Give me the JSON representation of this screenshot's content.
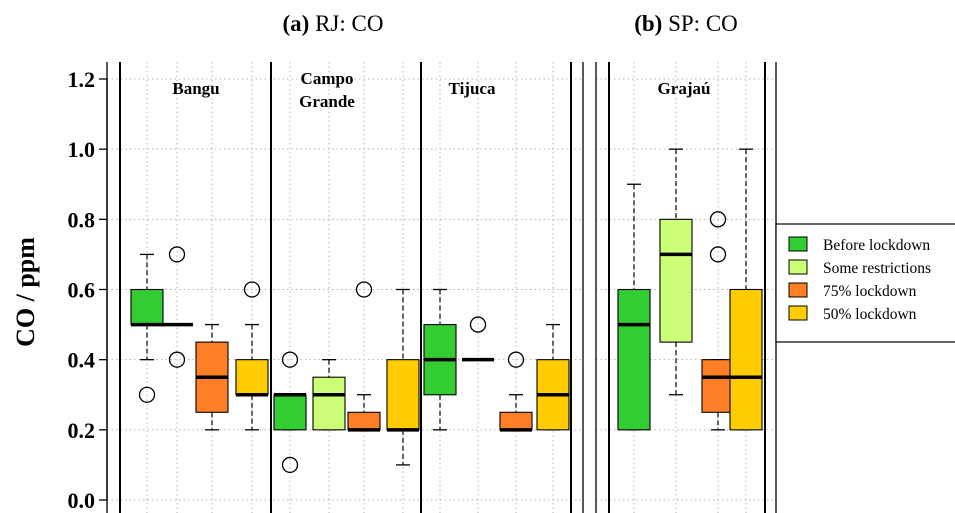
{
  "chart_data": {
    "type": "boxplot",
    "ylabel": "CO / ppm",
    "ylim": [
      0,
      1.2
    ],
    "yticks": [
      "0.0",
      "0.2",
      "0.4",
      "0.6",
      "0.8",
      "1.0",
      "1.2"
    ],
    "grid": true,
    "legend_position": "right",
    "categories": [
      "Before lockdown",
      "Some restrictions",
      "75% lockdown",
      "50% lockdown"
    ],
    "colors": {
      "Before lockdown": "#33cc33",
      "Some restrictions": "#ccff77",
      "75% lockdown": "#ff7f27",
      "50% lockdown": "#ffcc00"
    },
    "panels": [
      {
        "title_bold": "(a)",
        "title_rest": " RJ: CO",
        "stations": [
          {
            "name_lines": [
              "Bangu"
            ],
            "boxes": [
              {
                "category": "Before lockdown",
                "whisker_low": 0.4,
                "q1": 0.5,
                "median": 0.5,
                "q3": 0.6,
                "whisker_high": 0.7,
                "outliers": [
                  0.3
                ]
              },
              {
                "category": "Some restrictions",
                "whisker_low": 0.5,
                "q1": 0.5,
                "median": 0.5,
                "q3": 0.5,
                "whisker_high": 0.5,
                "outliers": [
                  0.4,
                  0.7
                ]
              },
              {
                "category": "75% lockdown",
                "whisker_low": 0.2,
                "q1": 0.25,
                "median": 0.35,
                "q3": 0.45,
                "whisker_high": 0.5,
                "outliers": []
              },
              {
                "category": "50% lockdown",
                "whisker_low": 0.2,
                "q1": 0.3,
                "median": 0.3,
                "q3": 0.4,
                "whisker_high": 0.5,
                "outliers": [
                  0.6
                ]
              }
            ]
          },
          {
            "name_lines": [
              "Campo",
              "Grande"
            ],
            "boxes": [
              {
                "category": "Before lockdown",
                "whisker_low": 0.2,
                "q1": 0.2,
                "median": 0.3,
                "q3": 0.3,
                "whisker_high": 0.3,
                "outliers": [
                  0.1,
                  0.4
                ]
              },
              {
                "category": "Some restrictions",
                "whisker_low": 0.2,
                "q1": 0.2,
                "median": 0.3,
                "q3": 0.35,
                "whisker_high": 0.4,
                "outliers": []
              },
              {
                "category": "75% lockdown",
                "whisker_low": 0.2,
                "q1": 0.2,
                "median": 0.2,
                "q3": 0.25,
                "whisker_high": 0.3,
                "outliers": [
                  0.6
                ]
              },
              {
                "category": "50% lockdown",
                "whisker_low": 0.1,
                "q1": 0.2,
                "median": 0.2,
                "q3": 0.4,
                "whisker_high": 0.6,
                "outliers": []
              }
            ]
          },
          {
            "name_lines": [
              "Tijuca"
            ],
            "boxes": [
              {
                "category": "Before lockdown",
                "whisker_low": 0.2,
                "q1": 0.3,
                "median": 0.4,
                "q3": 0.5,
                "whisker_high": 0.6,
                "outliers": []
              },
              {
                "category": "Some restrictions",
                "whisker_low": 0.4,
                "q1": 0.4,
                "median": 0.4,
                "q3": 0.4,
                "whisker_high": 0.4,
                "outliers": [
                  0.5
                ]
              },
              {
                "category": "75% lockdown",
                "whisker_low": 0.2,
                "q1": 0.2,
                "median": 0.2,
                "q3": 0.25,
                "whisker_high": 0.3,
                "outliers": [
                  0.4
                ]
              },
              {
                "category": "50% lockdown",
                "whisker_low": 0.2,
                "q1": 0.2,
                "median": 0.3,
                "q3": 0.4,
                "whisker_high": 0.5,
                "outliers": []
              }
            ]
          }
        ]
      },
      {
        "title_bold": "(b)",
        "title_rest": " SP: CO",
        "stations": [
          {
            "name_lines": [
              "Grajaú"
            ],
            "boxes": [
              {
                "category": "Before lockdown",
                "whisker_low": 0.2,
                "q1": 0.2,
                "median": 0.5,
                "q3": 0.6,
                "whisker_high": 0.9,
                "outliers": []
              },
              {
                "category": "Some restrictions",
                "whisker_low": 0.3,
                "q1": 0.45,
                "median": 0.7,
                "q3": 0.8,
                "whisker_high": 1.0,
                "outliers": []
              },
              {
                "category": "75% lockdown",
                "whisker_low": 0.2,
                "q1": 0.25,
                "median": 0.35,
                "q3": 0.4,
                "whisker_high": 0.4,
                "outliers": [
                  0.7,
                  0.8
                ]
              },
              {
                "category": "50% lockdown",
                "whisker_low": 0.2,
                "q1": 0.2,
                "median": 0.35,
                "q3": 0.6,
                "whisker_high": 1.0,
                "outliers": []
              }
            ]
          }
        ]
      }
    ]
  }
}
